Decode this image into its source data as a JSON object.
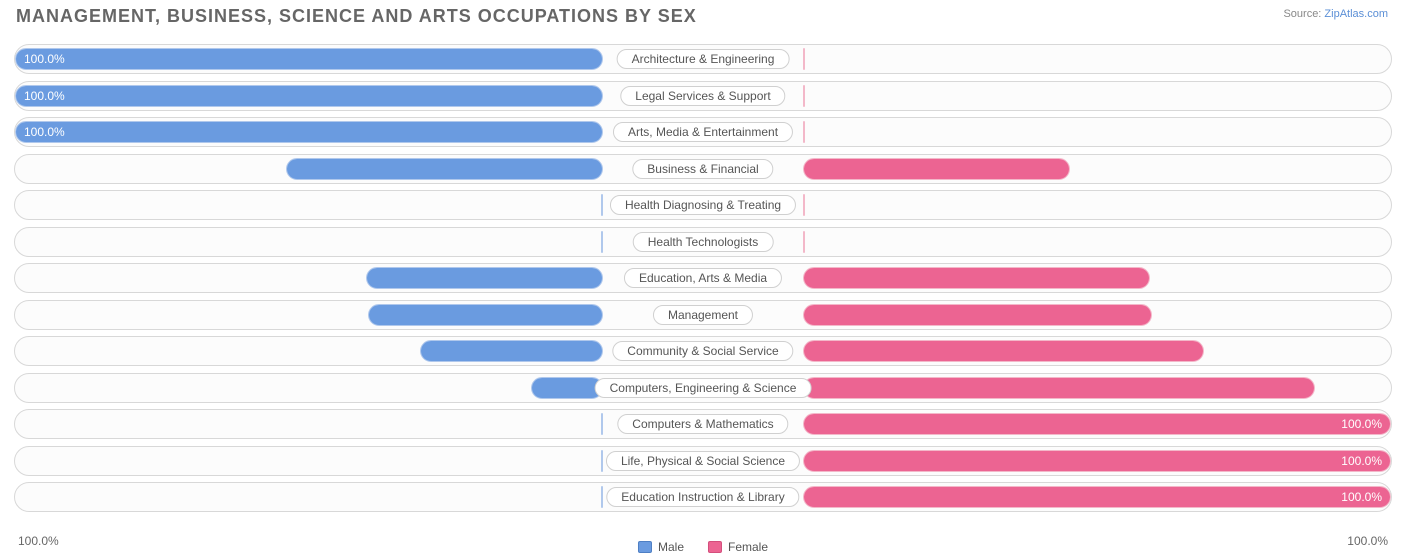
{
  "title": "MANAGEMENT, BUSINESS, SCIENCE AND ARTS OCCUPATIONS BY SEX",
  "source_prefix": "Source: ",
  "source_link": "ZipAtlas.com",
  "chart": {
    "type": "diverging-bar",
    "male_color": "#6a9be0",
    "male_track_fill": "#dbe6f7",
    "male_track_border": "#b0c8ec",
    "female_color": "#ec6492",
    "female_track_fill": "#fbe1ea",
    "female_track_border": "#f3b8c9",
    "row_border_color": "#d8d8d8",
    "background_color": "#ffffff",
    "label_fontsize": 12,
    "title_fontsize": 18,
    "title_color": "#666666",
    "axis_left": "100.0%",
    "axis_right": "100.0%",
    "legend_male": "Male",
    "legend_female": "Female",
    "min_track_pct": 14,
    "rows": [
      {
        "label": "Architecture & Engineering",
        "male": 100.0,
        "female": 0.0,
        "male_label": "100.0%",
        "female_label": "0.0%"
      },
      {
        "label": "Legal Services & Support",
        "male": 100.0,
        "female": 0.0,
        "male_label": "100.0%",
        "female_label": "0.0%"
      },
      {
        "label": "Arts, Media & Entertainment",
        "male": 100.0,
        "female": 0.0,
        "male_label": "100.0%",
        "female_label": "0.0%"
      },
      {
        "label": "Business & Financial",
        "male": 54.2,
        "female": 45.8,
        "male_label": "54.2%",
        "female_label": "45.8%"
      },
      {
        "label": "Health Diagnosing & Treating",
        "male": 0.0,
        "female": 0.0,
        "male_label": "0.0%",
        "female_label": "0.0%"
      },
      {
        "label": "Health Technologists",
        "male": 0.0,
        "female": 0.0,
        "male_label": "0.0%",
        "female_label": "0.0%"
      },
      {
        "label": "Education, Arts & Media",
        "male": 40.7,
        "female": 59.3,
        "male_label": "40.7%",
        "female_label": "59.3%"
      },
      {
        "label": "Management",
        "male": 40.4,
        "female": 59.6,
        "male_label": "40.4%",
        "female_label": "59.6%"
      },
      {
        "label": "Community & Social Service",
        "male": 31.6,
        "female": 68.4,
        "male_label": "31.6%",
        "female_label": "68.4%"
      },
      {
        "label": "Computers, Engineering & Science",
        "male": 12.8,
        "female": 87.2,
        "male_label": "12.8%",
        "female_label": "87.2%"
      },
      {
        "label": "Computers & Mathematics",
        "male": 0.0,
        "female": 100.0,
        "male_label": "0.0%",
        "female_label": "100.0%"
      },
      {
        "label": "Life, Physical & Social Science",
        "male": 0.0,
        "female": 100.0,
        "male_label": "0.0%",
        "female_label": "100.0%"
      },
      {
        "label": "Education Instruction & Library",
        "male": 0.0,
        "female": 100.0,
        "male_label": "0.0%",
        "female_label": "100.0%"
      }
    ]
  }
}
